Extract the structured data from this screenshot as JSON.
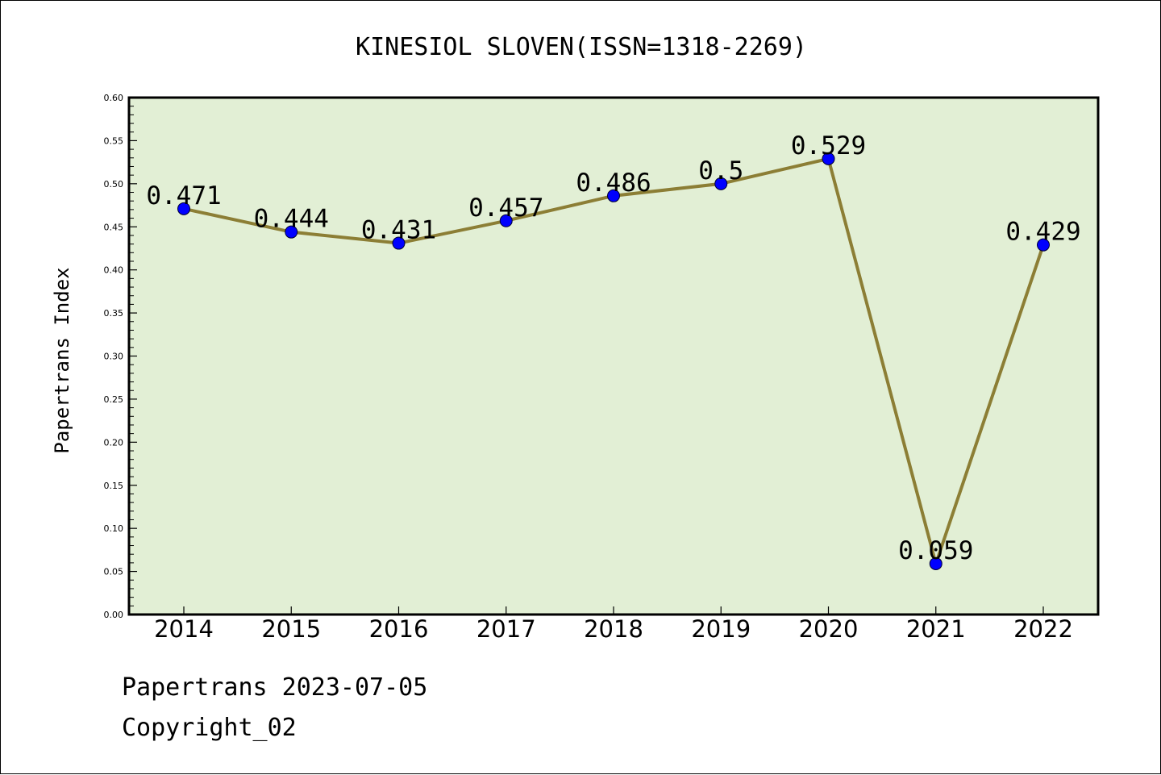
{
  "chart_data": {
    "type": "line",
    "title": "KINESIOL SLOVEN(ISSN=1318-2269)",
    "xlabel": "",
    "ylabel": "Papertrans Index",
    "categories": [
      "2014",
      "2015",
      "2016",
      "2017",
      "2018",
      "2019",
      "2020",
      "2021",
      "2022"
    ],
    "series": [
      {
        "values": [
          0.471,
          0.444,
          0.431,
          0.457,
          0.486,
          0.5,
          0.529,
          0.059,
          0.429
        ],
        "labels": [
          "0.471",
          "0.444",
          "0.431",
          "0.457",
          "0.486",
          "0.5",
          "0.529",
          "0.059",
          "0.429"
        ]
      }
    ],
    "ylim": [
      0,
      0.6
    ],
    "yticks": [
      "0.00",
      "0.05",
      "0.10",
      "0.15",
      "0.20",
      "0.25",
      "0.30",
      "0.35",
      "0.40",
      "0.45",
      "0.50",
      "0.55",
      "0.60"
    ],
    "grid": false,
    "legend": "none",
    "colors": {
      "plot_background": "#e2efd5",
      "line": "#8c7e35",
      "marker": "#0000ff"
    }
  },
  "footer": {
    "date_line": "Papertrans 2023-07-05",
    "copyright": "Copyright_02"
  }
}
